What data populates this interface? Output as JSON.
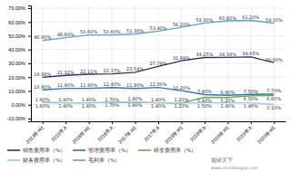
{
  "chart_data": {
    "type": "line",
    "categories": [
      "2013年H1",
      "2015年A",
      "2016年H1",
      "2016年A",
      "2017年H1",
      "2017年A",
      "2018年H1",
      "2018年A",
      "2019年H1",
      "2019年A",
      "2020年H1"
    ],
    "series": [
      {
        "name": "销售费用率（%）",
        "color": "#1f3864",
        "values": [
          19.88,
          21.32,
          22.11,
          22.37,
          23.54,
          27.79,
          31.89,
          34.25,
          34.34,
          34.65,
          30.6
        ],
        "value_labels": [
          "19.88%",
          "21.32%",
          "22.11%",
          "22.37%",
          "23.54%",
          "27.79%",
          "31.89%",
          "34.25%",
          "34.34%",
          "34.65%",
          "30.60%"
        ]
      },
      {
        "name": "管理费用率（%）",
        "color": "#2e75b6",
        "values": [
          10.8,
          11.9,
          11.9,
          12.4,
          11.8,
          12.5,
          10.2,
          7.4,
          6.9,
          7.5,
          7.7
        ],
        "value_labels": [
          "10.80%",
          "11.90%",
          "11.90%",
          "12.40%",
          "11.80%",
          "12.50%",
          "10.20%",
          "7.40%",
          "6.90%",
          "7.50%",
          "7.70%"
        ]
      },
      {
        "name": "研发费用率（%）",
        "color": "#70ad47",
        "values": [
          1.6,
          1.4,
          1.4,
          1.7,
          1.8,
          1.4,
          1.2,
          5.4,
          5.2,
          6.5,
          6.6
        ],
        "value_labels": [
          "1.60%",
          "1.40%",
          "1.40%",
          "1.70%",
          "1.80%",
          "1.40%",
          "1.20%",
          "5.40%",
          "5.20%",
          "6.50%",
          "6.60%"
        ]
      },
      {
        "name": "财务费用率（%）",
        "color": "#9dc3e6",
        "values": [
          1.6,
          1.4,
          1.4,
          1.7,
          1.8,
          1.4,
          1.2,
          1.5,
          1.4,
          1.4,
          0.1
        ],
        "value_labels": [
          "1.60%",
          "1.40%",
          "1.40%",
          "1.70%",
          "1.80%",
          "1.40%",
          "1.20%",
          "1.50%",
          "1.40%",
          "1.40%",
          "0.10%"
        ]
      },
      {
        "name": "毛利率（%）",
        "color": "#5ba3c9",
        "values": [
          46.6,
          48.6,
          50.6,
          50.6,
          51.3,
          53.4,
          56.2,
          59.3,
          60.8,
          61.2,
          59.1
        ],
        "value_labels": [
          "46.60%",
          "48.60%",
          "50.60%",
          "50.60%",
          "51.30%",
          "53.40%",
          "56.20%",
          "59.30%",
          "60.80%",
          "61.20%",
          "59.10%"
        ]
      }
    ],
    "ylim": [
      -12,
      72
    ],
    "yticks": [
      {
        "value": -10,
        "label": "-10.00%"
      },
      {
        "value": 0,
        "label": "0.00%"
      },
      {
        "value": 10,
        "label": "10.00%"
      },
      {
        "value": 20,
        "label": "20.00%"
      },
      {
        "value": 30,
        "label": "30.00%"
      },
      {
        "value": 40,
        "label": "40.00%"
      },
      {
        "value": 50,
        "label": "50.00%"
      },
      {
        "value": 60,
        "label": "60.00%"
      },
      {
        "value": 70,
        "label": "70.00%"
      }
    ],
    "grid": true,
    "legend": "bottom",
    "data_labels": true,
    "annotations": [
      "观研天下",
      "www.chinabaogao.com"
    ]
  }
}
